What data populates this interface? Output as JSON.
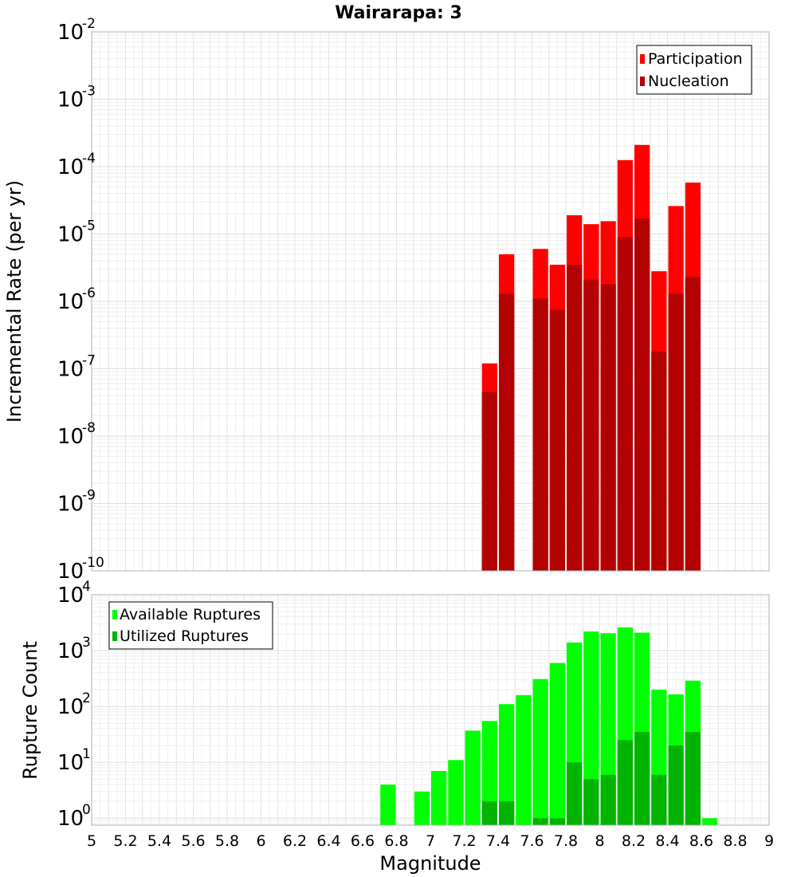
{
  "chart_data": [
    {
      "type": "bar",
      "title": "Wairarapa: 3",
      "xlabel": "",
      "ylabel": "Incremental Rate (per yr)",
      "yscale": "log",
      "ylim": [
        1e-10,
        0.01
      ],
      "xlim": [
        5,
        9
      ],
      "y_tick_exponents": [
        "-10",
        "-9",
        "-8",
        "-7",
        "-6",
        "-5",
        "-4",
        "-3",
        "-2"
      ],
      "grid": true,
      "legend_position": "top-right",
      "legend": [
        "Participation",
        "Nucleation"
      ],
      "series": [
        {
          "name": "Participation",
          "color": "#ff0000",
          "x": [
            7.35,
            7.45,
            7.65,
            7.75,
            7.85,
            7.95,
            8.05,
            8.15,
            8.25,
            8.35,
            8.45,
            8.55
          ],
          "values": [
            1.2e-07,
            5e-06,
            6e-06,
            3.5e-06,
            1.9e-05,
            1.4e-05,
            1.55e-05,
            0.000125,
            0.00021,
            2.8e-06,
            2.6e-05,
            5.8e-05
          ]
        },
        {
          "name": "Nucleation",
          "color": "#b30000",
          "x": [
            7.35,
            7.45,
            7.65,
            7.75,
            7.85,
            7.95,
            8.05,
            8.15,
            8.25,
            8.35,
            8.45,
            8.55
          ],
          "values": [
            4.5e-08,
            1.3e-06,
            1.1e-06,
            7.5e-07,
            3.5e-06,
            2.1e-06,
            1.8e-06,
            9e-06,
            1.7e-05,
            1.8e-07,
            1.3e-06,
            2.3e-06
          ]
        }
      ]
    },
    {
      "type": "bar",
      "title": "",
      "xlabel": "Magnitude",
      "ylabel": "Rupture Count",
      "yscale": "log",
      "ylim": [
        0.75,
        10000
      ],
      "xlim": [
        5,
        9
      ],
      "x_ticks": [
        "5",
        "5.2",
        "5.4",
        "5.6",
        "5.8",
        "6",
        "6.2",
        "6.4",
        "6.6",
        "6.8",
        "7",
        "7.2",
        "7.4",
        "7.6",
        "7.8",
        "8",
        "8.2",
        "8.4",
        "8.6",
        "8.8",
        "9"
      ],
      "y_tick_exponents": [
        "0",
        "1",
        "2",
        "3",
        "4"
      ],
      "grid": true,
      "legend_position": "top-left",
      "legend": [
        "Available Ruptures",
        "Utilized Ruptures"
      ],
      "series": [
        {
          "name": "Available Ruptures",
          "color": "#00ff00",
          "x": [
            6.75,
            6.95,
            7.05,
            7.15,
            7.25,
            7.35,
            7.45,
            7.55,
            7.65,
            7.75,
            7.85,
            7.95,
            8.05,
            8.15,
            8.25,
            8.35,
            8.45,
            8.55,
            8.65
          ],
          "values": [
            4,
            3,
            7,
            11,
            37,
            55,
            110,
            160,
            310,
            600,
            1400,
            2200,
            2050,
            2600,
            2100,
            200,
            165,
            290,
            1
          ]
        },
        {
          "name": "Utilized Ruptures",
          "color": "#00b400",
          "x": [
            7.35,
            7.45,
            7.65,
            7.75,
            7.85,
            7.95,
            8.05,
            8.15,
            8.25,
            8.35,
            8.45,
            8.55
          ],
          "values": [
            2,
            2,
            1,
            1,
            10,
            5,
            6,
            25,
            35,
            6,
            20,
            35
          ]
        }
      ]
    }
  ]
}
